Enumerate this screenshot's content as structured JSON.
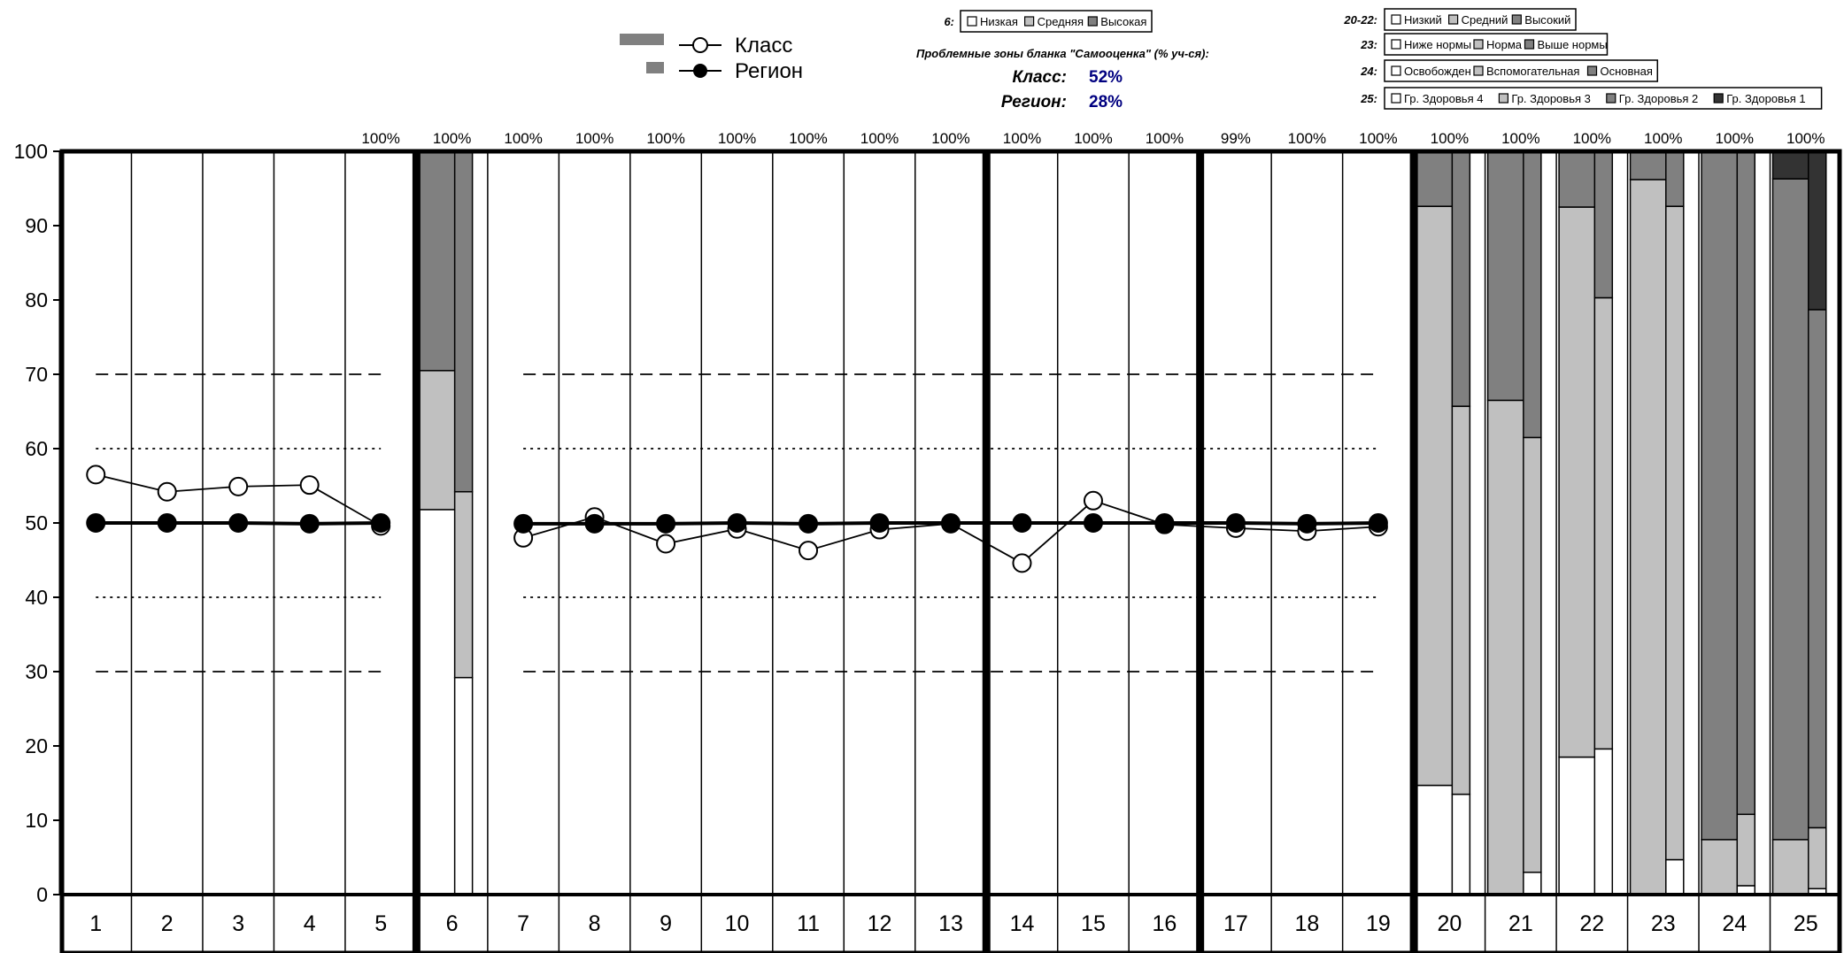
{
  "legend": {
    "class_label": "Класс",
    "region_label": "Регион"
  },
  "info": {
    "title": "Проблемные зоны бланка \"Самооценка\" (% уч-ся):",
    "class_label": "Класс:",
    "class_value": "52%",
    "region_label": "Регион:",
    "region_value": "28%"
  },
  "legends": [
    {
      "key": "6:",
      "items": [
        "Низкая",
        "Средняя",
        "Высокая"
      ]
    },
    {
      "key": "20-22:",
      "items": [
        "Низкий",
        "Средний",
        "Высокий"
      ]
    },
    {
      "key": "23:",
      "items": [
        "Ниже нормы",
        "Норма",
        "Выше нормы"
      ]
    },
    {
      "key": "24:",
      "items": [
        "Освобожден",
        "Вспомогательная",
        "Основная"
      ]
    },
    {
      "key": "25:",
      "items": [
        "Гр. Здоровья 4",
        "Гр. Здоровья 3",
        "Гр. Здоровья 2",
        "Гр. Здоровья 1"
      ]
    }
  ],
  "colors": {
    "white": "#ffffff",
    "light": "#c0c0c0",
    "mid": "#808080",
    "dark": "#333333",
    "info_value": "#000080"
  },
  "chart_data": {
    "type": "line",
    "ylim": [
      0,
      100
    ],
    "yticks": [
      "0",
      "10",
      "20",
      "30",
      "40",
      "50",
      "60",
      "70",
      "80",
      "90",
      "100"
    ],
    "categories": [
      "1",
      "2",
      "3",
      "4",
      "5",
      "6",
      "7",
      "8",
      "9",
      "10",
      "11",
      "12",
      "13",
      "14",
      "15",
      "16",
      "17",
      "18",
      "19",
      "20",
      "21",
      "22",
      "23",
      "24",
      "25"
    ],
    "top_labels": [
      "",
      "",
      "",
      "",
      "100%",
      "100%",
      "100%",
      "100%",
      "100%",
      "100%",
      "100%",
      "100%",
      "100%",
      "100%",
      "100%",
      "100%",
      "99%",
      "100%",
      "100%",
      "100%",
      "100%",
      "100%",
      "100%",
      "100%",
      "100%"
    ],
    "series": [
      {
        "name": "Класс",
        "x": [
          1,
          2,
          3,
          4,
          5,
          7,
          8,
          9,
          10,
          11,
          12,
          13,
          14,
          15,
          16,
          17,
          18,
          19
        ],
        "values": [
          56.5,
          54.2,
          54.9,
          55.1,
          49.6,
          48.0,
          50.8,
          47.2,
          49.2,
          46.3,
          49.1,
          49.9,
          44.6,
          53.0,
          49.8,
          49.3,
          48.9,
          49.5
        ]
      },
      {
        "name": "Регион",
        "x": [
          1,
          2,
          3,
          4,
          5,
          7,
          8,
          9,
          10,
          11,
          12,
          13,
          14,
          15,
          16,
          17,
          18,
          19
        ],
        "values": [
          50.0,
          50.0,
          50.0,
          49.9,
          50.0,
          49.9,
          49.9,
          49.9,
          50.0,
          49.9,
          50.0,
          50.0,
          50.0,
          50.0,
          50.0,
          50.0,
          49.9,
          50.0
        ]
      }
    ],
    "reference_lines": [
      {
        "value": 70,
        "style": "dashed"
      },
      {
        "value": 60,
        "style": "dotted"
      },
      {
        "value": 40,
        "style": "dotted"
      },
      {
        "value": 30,
        "style": "dashed"
      }
    ],
    "stacked_bars": [
      {
        "category": "6",
        "class": [
          51.8,
          18.7,
          29.5
        ],
        "region": [
          29.2,
          25.0,
          45.8
        ]
      },
      {
        "category": "20",
        "class": [
          14.7,
          77.9,
          7.4
        ],
        "region": [
          13.5,
          52.2,
          34.3
        ]
      },
      {
        "category": "21",
        "class": [
          0,
          66.5,
          33.5
        ],
        "region": [
          3.0,
          58.5,
          38.5
        ]
      },
      {
        "category": "22",
        "class": [
          18.5,
          74.0,
          7.5
        ],
        "region": [
          19.6,
          60.7,
          19.7
        ]
      },
      {
        "category": "23",
        "class": [
          0,
          96.2,
          3.8
        ],
        "region": [
          4.7,
          87.9,
          7.4
        ]
      },
      {
        "category": "24",
        "class": [
          0,
          7.4,
          92.6
        ],
        "region": [
          1.2,
          9.6,
          89.2
        ]
      },
      {
        "category": "25",
        "class": [
          0,
          7.4,
          88.9,
          3.7
        ],
        "region": [
          0.8,
          8.2,
          69.7,
          21.3
        ]
      }
    ]
  }
}
